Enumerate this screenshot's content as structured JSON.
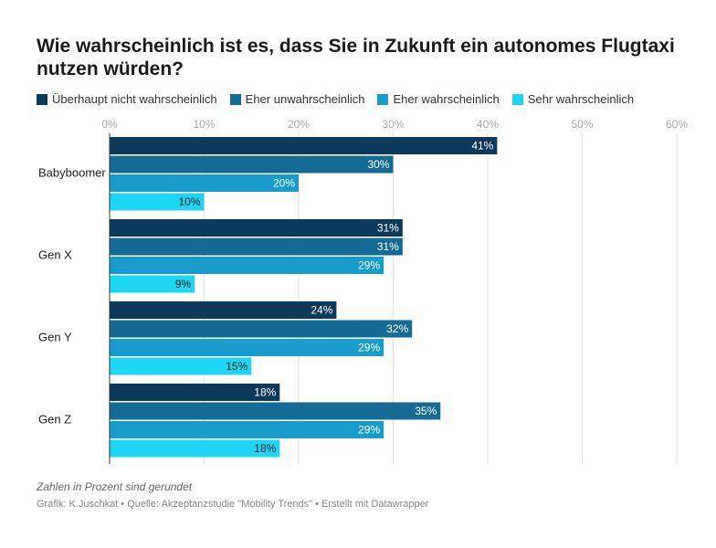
{
  "chart_data": {
    "type": "bar",
    "orientation": "horizontal",
    "title": "Wie wahrscheinlich ist es, dass Sie in Zukunft ein autonomes Flugtaxi nutzen würden?",
    "categories": [
      "Babyboomer",
      "Gen X",
      "Gen Y",
      "Gen Z"
    ],
    "series": [
      {
        "name": "Überhaupt nicht wahrscheinlich",
        "color": "#0b3a5d",
        "values": [
          41,
          31,
          24,
          18
        ],
        "value_labels": [
          "41%",
          "31%",
          "24%",
          "18%"
        ]
      },
      {
        "name": "Eher unwahrscheinlich",
        "color": "#166a96",
        "values": [
          30,
          31,
          32,
          35
        ],
        "value_labels": [
          "30%",
          "31%",
          "32%",
          "35%"
        ]
      },
      {
        "name": "Eher wahrscheinlich",
        "color": "#189ccb",
        "values": [
          20,
          29,
          29,
          29
        ],
        "value_labels": [
          "20%",
          "29%",
          "29%",
          "29%"
        ]
      },
      {
        "name": "Sehr wahrscheinlich",
        "color": "#1ed6f3",
        "values": [
          10,
          9,
          15,
          18
        ],
        "value_labels": [
          "10%",
          "9%",
          "15%",
          "18%"
        ]
      }
    ],
    "xlim": [
      0,
      60
    ],
    "xticks": [
      {
        "value": 0,
        "label": "0%"
      },
      {
        "value": 10,
        "label": "10%"
      },
      {
        "value": 20,
        "label": "20%"
      },
      {
        "value": 30,
        "label": "30%"
      },
      {
        "value": 40,
        "label": "40%"
      },
      {
        "value": 50,
        "label": "50%"
      },
      {
        "value": 60,
        "label": "60%"
      }
    ],
    "grid": true,
    "note": "Zahlen in Prozent sind gerundet",
    "source": "Grafik: K.Juschkat • Quelle: Akzeptanzstudie \"Mobility Trends\" • Erstellt mit Datawrapper"
  }
}
